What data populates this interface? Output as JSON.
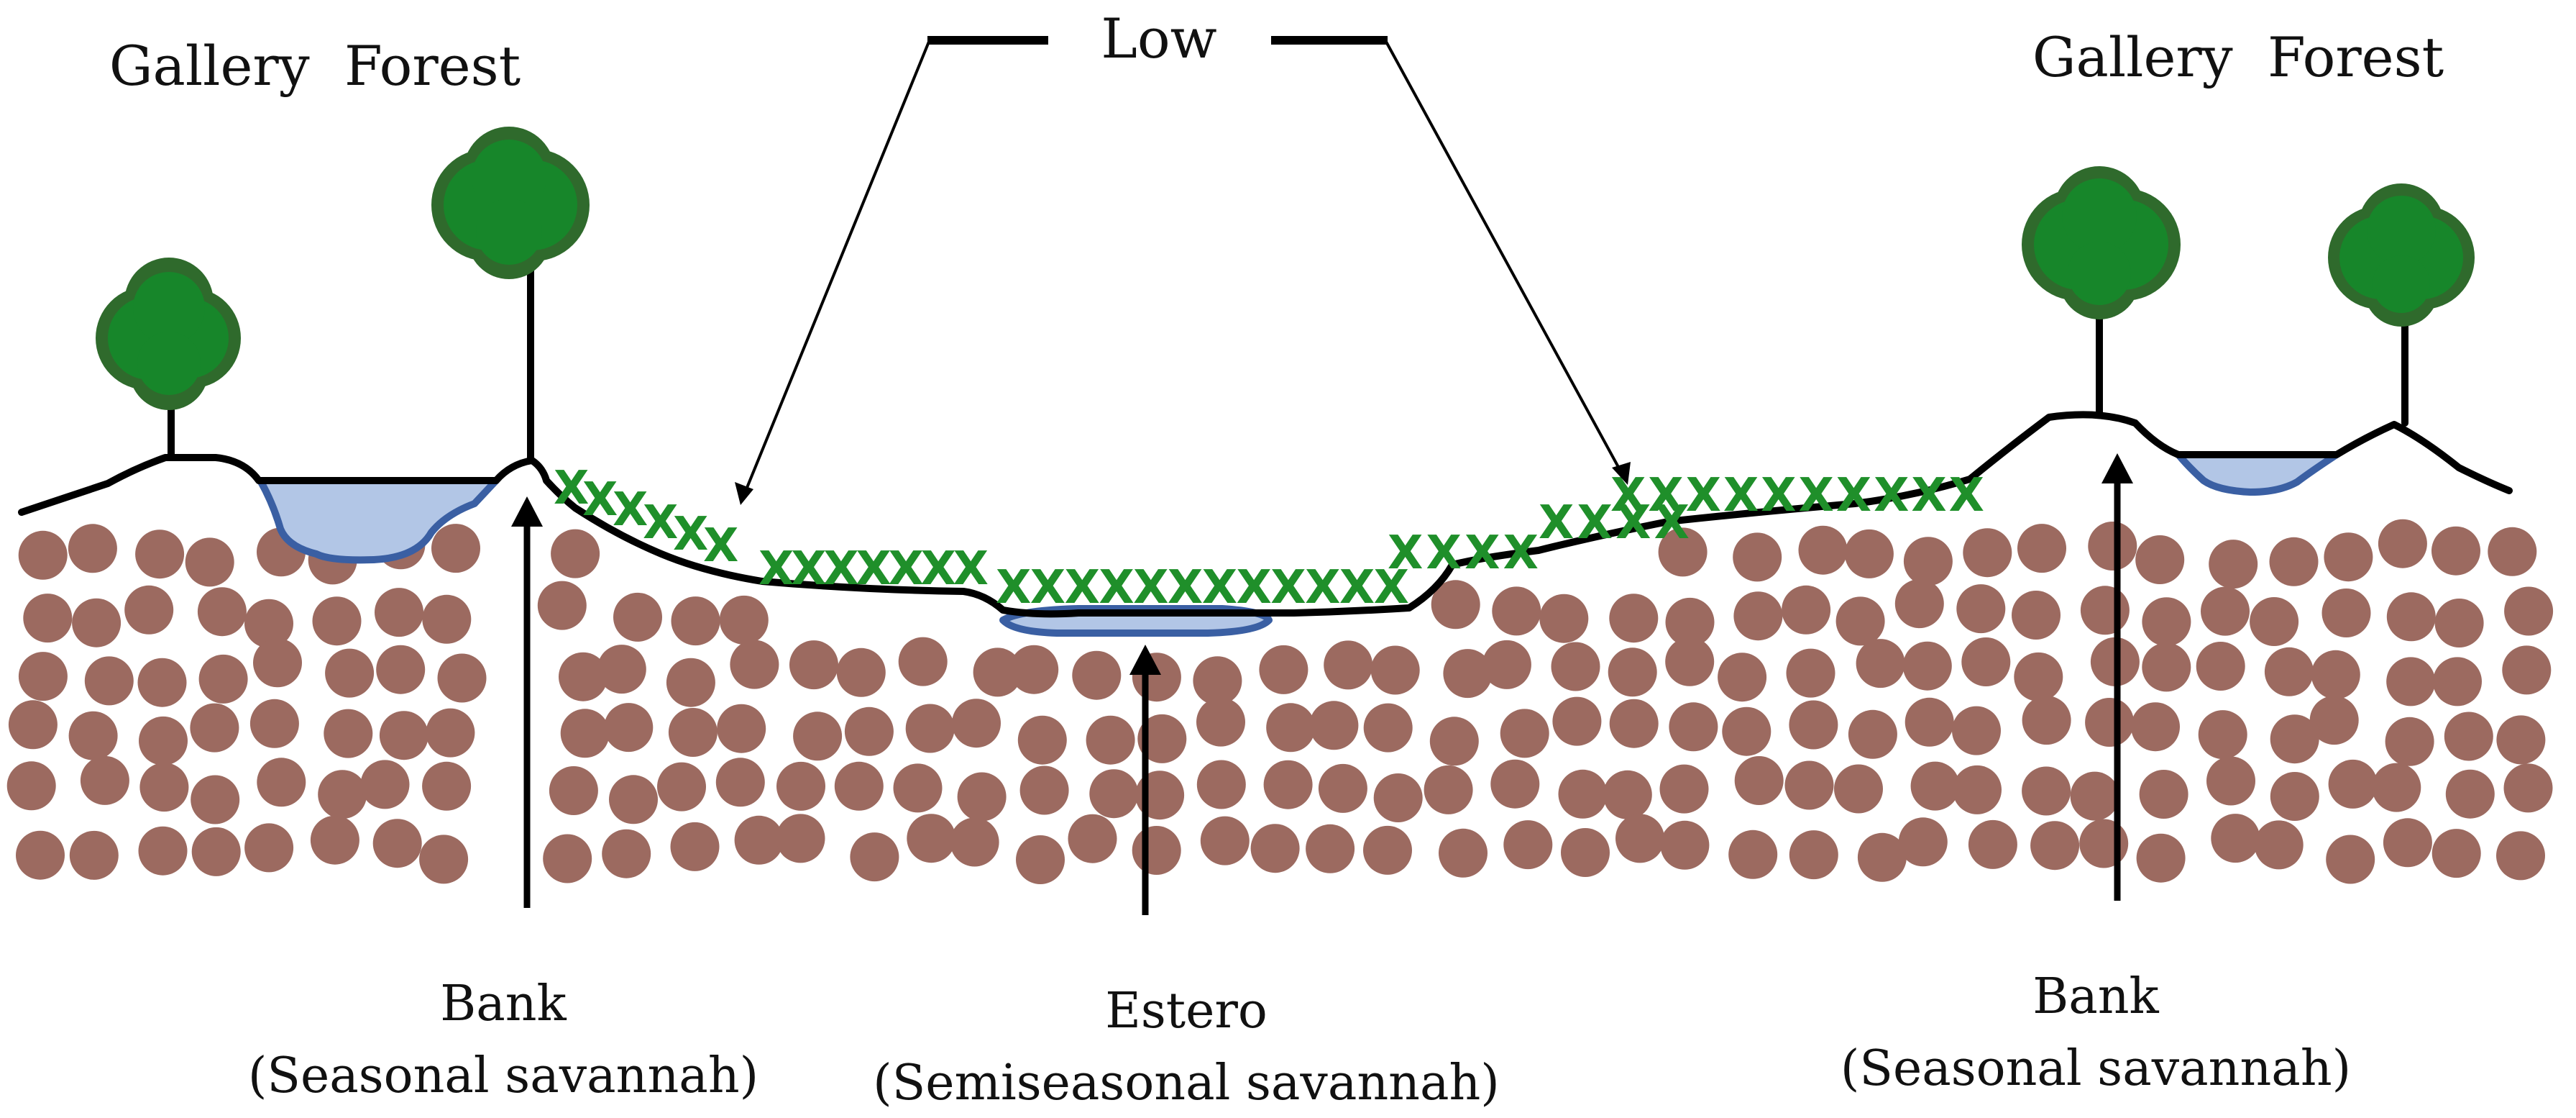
{
  "labels": {
    "gallery_forest_left": "Gallery  Forest",
    "gallery_forest_right": "Gallery  Forest",
    "low": "Low",
    "bank_left_title": "Bank",
    "bank_left_sub": "(Seasonal savannah)",
    "estero_title": "Estero",
    "estero_sub": "(Semiseasonal savannah)",
    "bank_right_title": "Bank",
    "bank_right_sub": "(Seasonal savannah)"
  },
  "colors": {
    "pebble": "#9c6a60",
    "water_fill": "#b2c6e6",
    "water_stroke": "#3a5fa3",
    "tree_canopy": "#17862a",
    "tree_canopy_edge": "#2f6a2c",
    "grass": "#1f8f2a"
  }
}
